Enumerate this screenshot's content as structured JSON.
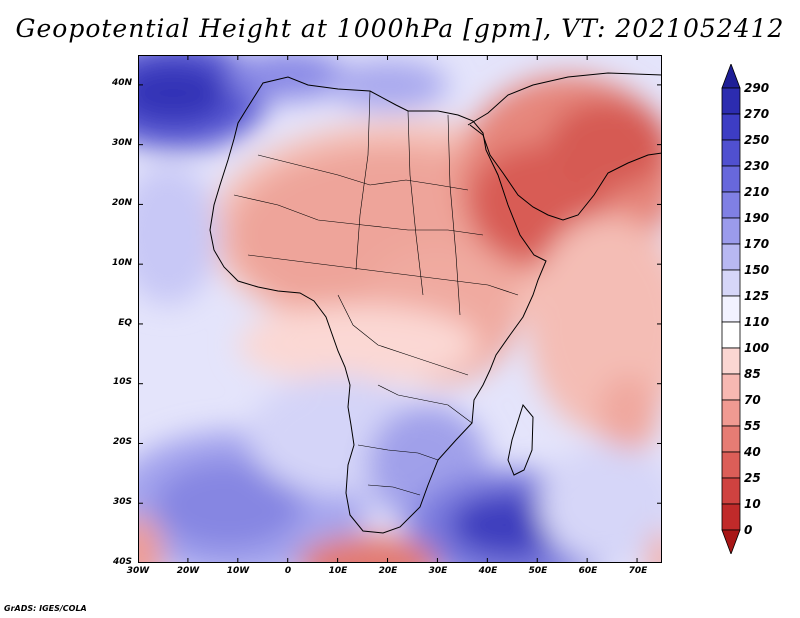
{
  "title": "Geopotential Height at 1000hPa [gpm], VT: 2021052412",
  "credit": "GrADS: IGES/COLA",
  "map": {
    "variable": "Geopotential Height at 1000hPa",
    "units": "gpm",
    "valid_time": "2021052412",
    "lon_range": [
      -30,
      75
    ],
    "lat_range": [
      -40,
      45
    ],
    "lat_ticks": [
      "40N",
      "30N",
      "20N",
      "10N",
      "EQ",
      "10S",
      "20S",
      "30S",
      "40S"
    ],
    "lon_ticks": [
      "30W",
      "20W",
      "10W",
      "0",
      "10E",
      "20E",
      "30E",
      "40E",
      "50E",
      "60E",
      "70E"
    ]
  },
  "colorbar": {
    "labels": [
      "290",
      "270",
      "250",
      "230",
      "210",
      "190",
      "170",
      "150",
      "125",
      "110",
      "100",
      "85",
      "70",
      "55",
      "40",
      "25",
      "10",
      "0"
    ],
    "colors": [
      "#1e1e96",
      "#2c2cb0",
      "#3d3dc4",
      "#5050d0",
      "#6868dc",
      "#8080e4",
      "#9b9bec",
      "#b8b8f2",
      "#d6d6f8",
      "#f2f2ff",
      "#ffffff",
      "#fbd6d2",
      "#f7b8b2",
      "#f09a92",
      "#e67c74",
      "#dc5e58",
      "#cf4240",
      "#c02a2a",
      "#a81616"
    ]
  }
}
